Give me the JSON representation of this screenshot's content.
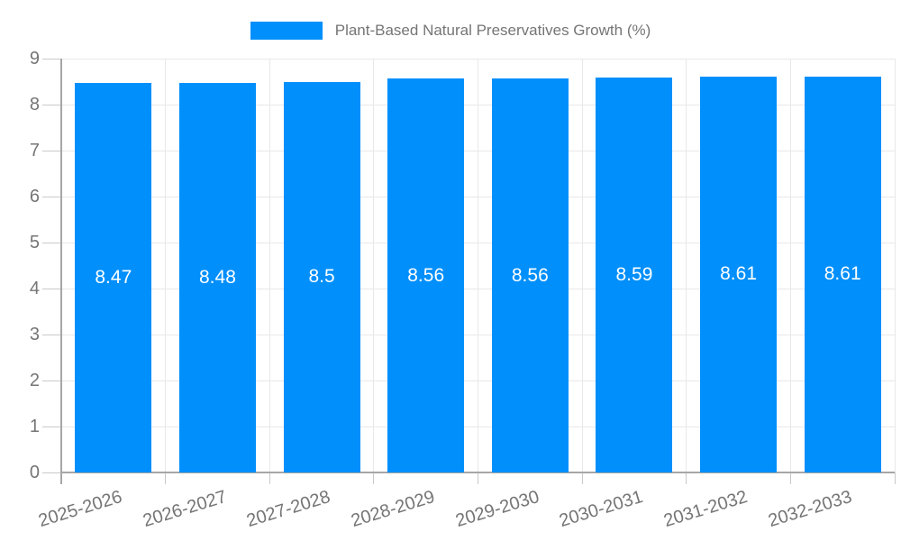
{
  "chart_data": {
    "type": "bar",
    "title": "Plant-Based Natural Preservatives Growth (%)",
    "legend": {
      "label": "Plant-Based Natural Preservatives Growth (%)",
      "position": "top"
    },
    "categories": [
      "2025-2026",
      "2026-2027",
      "2027-2028",
      "2028-2029",
      "2029-2030",
      "2030-2031",
      "2031-2032",
      "2032-2033"
    ],
    "values": [
      8.47,
      8.48,
      8.5,
      8.56,
      8.56,
      8.59,
      8.61,
      8.61
    ],
    "value_labels": [
      "8.47",
      "8.48",
      "8.5",
      "8.56",
      "8.56",
      "8.59",
      "8.61",
      "8.61"
    ],
    "ylabel": "",
    "xlabel": "",
    "ylim": [
      0,
      9
    ],
    "y_tick_labels": [
      "0",
      "1",
      "2",
      "3",
      "4",
      "5",
      "6",
      "7",
      "8",
      "9"
    ],
    "grid": true,
    "colors": {
      "bar": "#008FFB",
      "grid": "#e8e8e8",
      "axis": "#a6a6a6",
      "tick": "#c9c9c9",
      "label": "#757575",
      "value_label": "#ffffff",
      "background": "#ffffff"
    }
  }
}
